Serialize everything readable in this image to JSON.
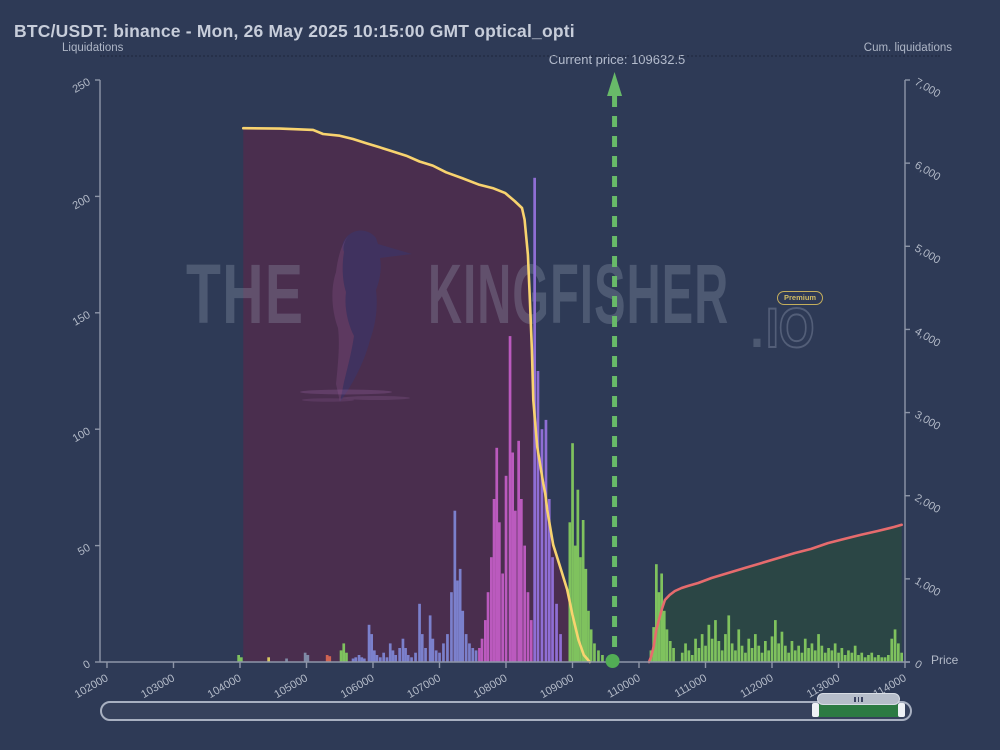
{
  "window": {
    "title": "BTC/USDT: binance - Mon, 26 May 2025 10:15:00 GMT optical_opti"
  },
  "axes": {
    "left_title": "Liquidations",
    "right_title": "Cum. liquidations",
    "price_axis_label": "Price"
  },
  "annotation": {
    "current_price_text": "Current price: 109632.5",
    "current_price": 109632.5
  },
  "watermark": {
    "the": "THE",
    "kingfisher": "KINGFISHER",
    "dot": ".",
    "io": "IO",
    "premium": "Premium",
    "bird_icon": "kingfisher-bird-silhouette"
  },
  "navigator": {
    "range_start_frac": 0.884,
    "range_end_frac": 0.989
  },
  "colors": {
    "background": "#2e3a56",
    "axis": "#8e96a8",
    "tick_text": "#b3bac8",
    "title_text": "#c7cdda",
    "yellow_line": "#f8d36f",
    "red_line": "#e66b6d",
    "purple_fill": "#4a2e4e",
    "teal_fill": "#2b4645",
    "current_price_line": "#68ba69",
    "current_price_dot": "#52ad55",
    "bar_blue": "#7b80cc",
    "bar_magenta": "#bb5abe",
    "bar_violet": "#8f6ed4",
    "bar_green": "#7fc25e",
    "bar_gray": "#7f8aa6",
    "bar_red": "#cf6352",
    "bar_yellow": "#d9c862"
  },
  "chart_data": [
    {
      "type": "bar",
      "name": "liquidations_by_price_level",
      "x_label": "Price",
      "y_axis": "left",
      "y_label": "Liquidations",
      "xlim": [
        101895,
        114000
      ],
      "ylim": [
        0,
        250
      ],
      "x_ticks": [
        102000,
        103000,
        104000,
        105000,
        106000,
        107000,
        108000,
        109000,
        110000,
        111000,
        112000,
        113000,
        114000
      ],
      "left_ticks": [
        0,
        50,
        100,
        150,
        200,
        250
      ],
      "bar_width_usd": 40,
      "bars": [
        [
          103980,
          3,
          "green"
        ],
        [
          104020,
          2,
          "green"
        ],
        [
          104430,
          2,
          "yellow"
        ],
        [
          104700,
          1.5,
          "gray"
        ],
        [
          104980,
          4,
          "gray"
        ],
        [
          105020,
          3,
          "gray"
        ],
        [
          105310,
          3,
          "red"
        ],
        [
          105350,
          2.5,
          "red"
        ],
        [
          105520,
          5,
          "green"
        ],
        [
          105560,
          8,
          "green"
        ],
        [
          105600,
          4,
          "green"
        ],
        [
          105700,
          1.5,
          "blue"
        ],
        [
          105740,
          2,
          "blue"
        ],
        [
          105790,
          3,
          "blue"
        ],
        [
          105830,
          2,
          "blue"
        ],
        [
          105870,
          1.5,
          "blue"
        ],
        [
          105940,
          16,
          "blue"
        ],
        [
          105980,
          12,
          "blue"
        ],
        [
          106020,
          5,
          "blue"
        ],
        [
          106060,
          3,
          "blue"
        ],
        [
          106110,
          2,
          "blue"
        ],
        [
          106160,
          4,
          "blue"
        ],
        [
          106210,
          2,
          "blue"
        ],
        [
          106260,
          8,
          "blue"
        ],
        [
          106300,
          5,
          "blue"
        ],
        [
          106340,
          3,
          "blue"
        ],
        [
          106400,
          6,
          "blue"
        ],
        [
          106450,
          10,
          "blue"
        ],
        [
          106490,
          6,
          "blue"
        ],
        [
          106530,
          3,
          "blue"
        ],
        [
          106580,
          2,
          "blue"
        ],
        [
          106640,
          4,
          "blue"
        ],
        [
          106700,
          25,
          "blue"
        ],
        [
          106740,
          12,
          "blue"
        ],
        [
          106790,
          6,
          "blue"
        ],
        [
          106860,
          20,
          "blue"
        ],
        [
          106900,
          10,
          "blue"
        ],
        [
          106950,
          5,
          "blue"
        ],
        [
          107000,
          4,
          "blue"
        ],
        [
          107060,
          8,
          "blue"
        ],
        [
          107120,
          12,
          "blue"
        ],
        [
          107180,
          30,
          "blue"
        ],
        [
          107230,
          65,
          "blue"
        ],
        [
          107270,
          35,
          "blue"
        ],
        [
          107310,
          40,
          "blue"
        ],
        [
          107350,
          22,
          "blue"
        ],
        [
          107400,
          12,
          "blue"
        ],
        [
          107450,
          8,
          "blue"
        ],
        [
          107500,
          6,
          "blue"
        ],
        [
          107550,
          5,
          "blue"
        ],
        [
          107600,
          6,
          "magenta"
        ],
        [
          107640,
          10,
          "magenta"
        ],
        [
          107690,
          18,
          "magenta"
        ],
        [
          107730,
          30,
          "magenta"
        ],
        [
          107780,
          45,
          "magenta"
        ],
        [
          107820,
          70,
          "magenta"
        ],
        [
          107860,
          92,
          "magenta"
        ],
        [
          107900,
          60,
          "magenta"
        ],
        [
          107950,
          38,
          "magenta"
        ],
        [
          108000,
          80,
          "magenta"
        ],
        [
          108060,
          140,
          "magenta"
        ],
        [
          108100,
          90,
          "magenta"
        ],
        [
          108140,
          65,
          "magenta"
        ],
        [
          108190,
          95,
          "magenta"
        ],
        [
          108230,
          70,
          "magenta"
        ],
        [
          108280,
          50,
          "magenta"
        ],
        [
          108330,
          30,
          "magenta"
        ],
        [
          108380,
          18,
          "magenta"
        ],
        [
          108430,
          208,
          "violet"
        ],
        [
          108480,
          125,
          "violet"
        ],
        [
          108540,
          100,
          "violet"
        ],
        [
          108600,
          104,
          "violet"
        ],
        [
          108650,
          70,
          "violet"
        ],
        [
          108700,
          45,
          "violet"
        ],
        [
          108760,
          25,
          "violet"
        ],
        [
          108820,
          12,
          "violet"
        ],
        [
          108960,
          60,
          "green"
        ],
        [
          109000,
          94,
          "green"
        ],
        [
          109040,
          50,
          "green"
        ],
        [
          109080,
          74,
          "green"
        ],
        [
          109120,
          45,
          "green"
        ],
        [
          109160,
          61,
          "green"
        ],
        [
          109200,
          40,
          "green"
        ],
        [
          109240,
          22,
          "green"
        ],
        [
          109280,
          14,
          "green"
        ],
        [
          109330,
          8,
          "green"
        ],
        [
          109390,
          5,
          "green"
        ],
        [
          109450,
          3,
          "green"
        ],
        [
          110180,
          5,
          "green"
        ],
        [
          110220,
          15,
          "green"
        ],
        [
          110260,
          42,
          "green"
        ],
        [
          110300,
          30,
          "green"
        ],
        [
          110340,
          38,
          "green"
        ],
        [
          110380,
          22,
          "green"
        ],
        [
          110420,
          14,
          "green"
        ],
        [
          110470,
          9,
          "green"
        ],
        [
          110520,
          6,
          "green"
        ],
        [
          110650,
          4,
          "green"
        ],
        [
          110700,
          8,
          "green"
        ],
        [
          110750,
          5,
          "green"
        ],
        [
          110800,
          3,
          "green"
        ],
        [
          110850,
          10,
          "green"
        ],
        [
          110900,
          6,
          "green"
        ],
        [
          110950,
          12,
          "green"
        ],
        [
          111000,
          7,
          "green"
        ],
        [
          111050,
          16,
          "green"
        ],
        [
          111100,
          10,
          "green"
        ],
        [
          111150,
          18,
          "green"
        ],
        [
          111200,
          9,
          "green"
        ],
        [
          111250,
          5,
          "green"
        ],
        [
          111300,
          12,
          "green"
        ],
        [
          111350,
          20,
          "green"
        ],
        [
          111400,
          8,
          "green"
        ],
        [
          111450,
          5,
          "green"
        ],
        [
          111500,
          14,
          "green"
        ],
        [
          111550,
          7,
          "green"
        ],
        [
          111600,
          4,
          "green"
        ],
        [
          111650,
          10,
          "green"
        ],
        [
          111700,
          6,
          "green"
        ],
        [
          111750,
          12,
          "green"
        ],
        [
          111800,
          7,
          "green"
        ],
        [
          111850,
          4,
          "green"
        ],
        [
          111900,
          9,
          "green"
        ],
        [
          111950,
          5,
          "green"
        ],
        [
          112000,
          11,
          "green"
        ],
        [
          112050,
          18,
          "green"
        ],
        [
          112100,
          8,
          "green"
        ],
        [
          112150,
          13,
          "green"
        ],
        [
          112200,
          7,
          "green"
        ],
        [
          112250,
          4,
          "green"
        ],
        [
          112300,
          9,
          "green"
        ],
        [
          112350,
          5,
          "green"
        ],
        [
          112400,
          7,
          "green"
        ],
        [
          112450,
          4,
          "green"
        ],
        [
          112500,
          10,
          "green"
        ],
        [
          112550,
          6,
          "green"
        ],
        [
          112600,
          8,
          "green"
        ],
        [
          112650,
          5,
          "green"
        ],
        [
          112700,
          12,
          "green"
        ],
        [
          112750,
          7,
          "green"
        ],
        [
          112800,
          4,
          "green"
        ],
        [
          112850,
          6,
          "green"
        ],
        [
          112900,
          5,
          "green"
        ],
        [
          112950,
          8,
          "green"
        ],
        [
          113000,
          4,
          "green"
        ],
        [
          113050,
          6,
          "green"
        ],
        [
          113100,
          3,
          "green"
        ],
        [
          113150,
          5,
          "green"
        ],
        [
          113200,
          4,
          "green"
        ],
        [
          113250,
          7,
          "green"
        ],
        [
          113300,
          3,
          "green"
        ],
        [
          113350,
          4,
          "green"
        ],
        [
          113400,
          2,
          "green"
        ],
        [
          113450,
          3,
          "green"
        ],
        [
          113500,
          4,
          "green"
        ],
        [
          113550,
          2,
          "green"
        ],
        [
          113600,
          3,
          "green"
        ],
        [
          113650,
          2,
          "green"
        ],
        [
          113700,
          2,
          "green"
        ],
        [
          113750,
          3,
          "green"
        ],
        [
          113800,
          10,
          "green"
        ],
        [
          113850,
          14,
          "green"
        ],
        [
          113900,
          8,
          "green"
        ],
        [
          113950,
          4,
          "green"
        ]
      ]
    },
    {
      "type": "area",
      "name": "cumulative_liquidations_below_price",
      "y_axis": "right",
      "ylim": [
        0,
        7000
      ],
      "right_ticks": [
        0,
        1000,
        2000,
        3000,
        4000,
        5000,
        6000,
        7000
      ],
      "line_color_key": "yellow_line",
      "fill_color_key": "purple_fill",
      "points": [
        [
          104050,
          6420
        ],
        [
          104600,
          6415
        ],
        [
          105100,
          6400
        ],
        [
          105250,
          6350
        ],
        [
          105500,
          6330
        ],
        [
          105700,
          6290
        ],
        [
          105900,
          6240
        ],
        [
          106100,
          6190
        ],
        [
          106300,
          6140
        ],
        [
          106500,
          6090
        ],
        [
          106700,
          6020
        ],
        [
          106900,
          5970
        ],
        [
          107100,
          5890
        ],
        [
          107340,
          5820
        ],
        [
          107600,
          5740
        ],
        [
          107800,
          5700
        ],
        [
          107990,
          5640
        ],
        [
          108130,
          5545
        ],
        [
          108240,
          5460
        ],
        [
          108280,
          5320
        ],
        [
          108330,
          4900
        ],
        [
          108360,
          4350
        ],
        [
          108390,
          3750
        ],
        [
          108410,
          3150
        ],
        [
          108470,
          2590
        ],
        [
          108560,
          2150
        ],
        [
          108590,
          2030
        ],
        [
          108620,
          1830
        ],
        [
          108710,
          1410
        ],
        [
          108820,
          1130
        ],
        [
          108920,
          870
        ],
        [
          109000,
          565
        ],
        [
          109090,
          265
        ],
        [
          109170,
          84
        ],
        [
          109260,
          0
        ]
      ]
    },
    {
      "type": "area",
      "name": "cumulative_liquidations_above_price",
      "y_axis": "right",
      "ylim": [
        0,
        7000
      ],
      "line_color_key": "red_line",
      "fill_color_key": "teal_fill",
      "points": [
        [
          110150,
          0
        ],
        [
          110180,
          60
        ],
        [
          110220,
          180
        ],
        [
          110260,
          385
        ],
        [
          110300,
          505
        ],
        [
          110340,
          625
        ],
        [
          110390,
          746
        ],
        [
          110460,
          806
        ],
        [
          110540,
          854
        ],
        [
          110640,
          890
        ],
        [
          110740,
          915
        ],
        [
          110890,
          950
        ],
        [
          111090,
          1010
        ],
        [
          111340,
          1070
        ],
        [
          111590,
          1130
        ],
        [
          111840,
          1190
        ],
        [
          112090,
          1250
        ],
        [
          112340,
          1310
        ],
        [
          112590,
          1360
        ],
        [
          112840,
          1430
        ],
        [
          113090,
          1480
        ],
        [
          113340,
          1530
        ],
        [
          113590,
          1575
        ],
        [
          113840,
          1625
        ],
        [
          113950,
          1650
        ]
      ]
    }
  ]
}
